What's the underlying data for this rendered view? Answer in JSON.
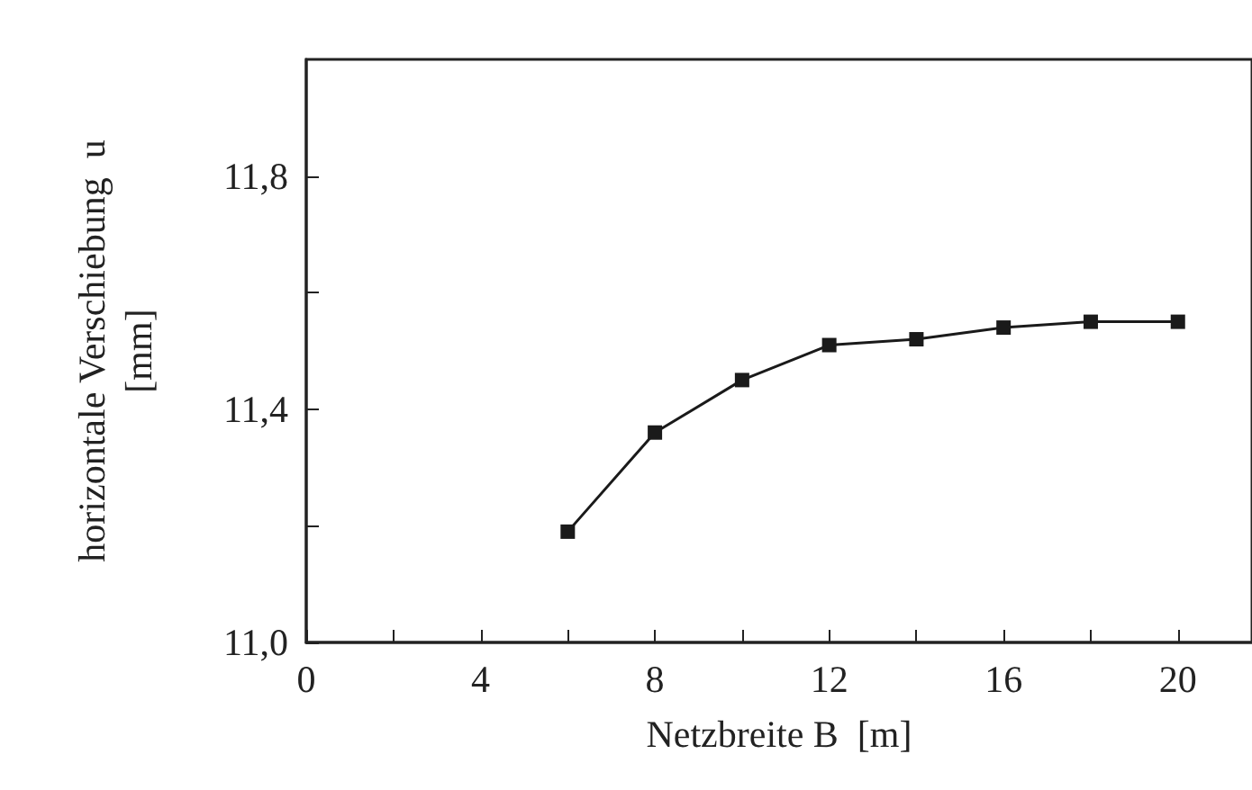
{
  "chart_data": {
    "type": "line",
    "xlabel": "Netzbreite B  [m]",
    "ylabel": "horizontale Verschiebung  u\n[mm]",
    "x": [
      6,
      8,
      10,
      12,
      14,
      16,
      18,
      20
    ],
    "series": [
      {
        "color": "#1a1a1a",
        "values": [
          11.19,
          11.36,
          11.45,
          11.51,
          11.52,
          11.54,
          11.55,
          11.55
        ]
      }
    ],
    "xlim": [
      0,
      21.7
    ],
    "xticks": [
      0,
      {
        "value": 2,
        "label": null
      },
      4,
      {
        "value": 6,
        "label": null
      },
      8,
      {
        "value": 10,
        "label": null
      },
      12,
      {
        "value": 14,
        "label": null
      },
      16,
      {
        "value": 18,
        "label": null
      },
      20
    ],
    "ylim": [
      11.0,
      12.0
    ],
    "yticks": [
      {
        "value": 11.0,
        "label": "11,0"
      },
      {
        "value": 11.2,
        "label": null
      },
      {
        "value": 11.4,
        "label": "11,4"
      },
      {
        "value": 11.6,
        "label": null
      },
      {
        "value": 11.8,
        "label": "11,8"
      }
    ],
    "grid": false,
    "marker": "square",
    "line_style": "solid"
  }
}
